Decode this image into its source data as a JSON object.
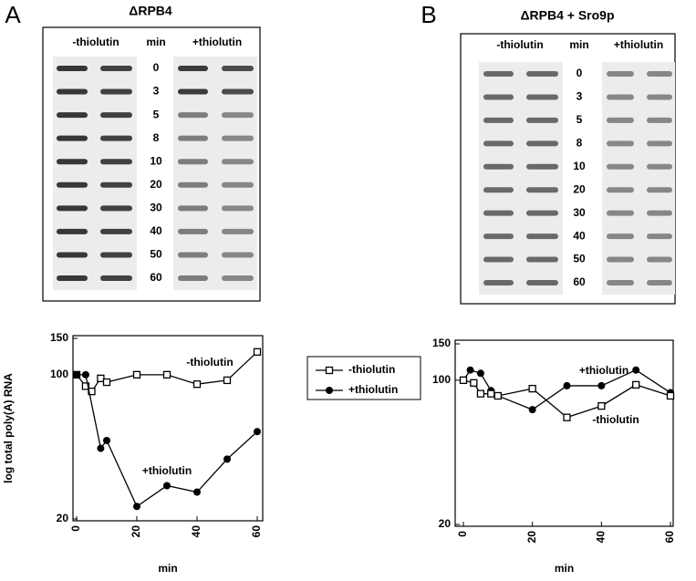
{
  "panels": [
    {
      "label": "A",
      "title": "ΔRPB4",
      "lanes": [
        "-thiolutin",
        "min",
        "+thiolutin"
      ],
      "times": [
        "0",
        "3",
        "5",
        "8",
        "10",
        "20",
        "30",
        "40",
        "50",
        "60"
      ]
    },
    {
      "label": "B",
      "title": "ΔRPB4 + Sro9p",
      "lanes": [
        "-thiolutin",
        "min",
        "+thiolutin"
      ],
      "times": [
        "0",
        "3",
        "5",
        "8",
        "10",
        "20",
        "30",
        "40",
        "50",
        "60"
      ]
    }
  ],
  "chart_data": [
    {
      "type": "line",
      "xlabel": "min",
      "ylabel": "log total poly(A) RNA",
      "log_y": true,
      "legend": true,
      "xlim": [
        0,
        60
      ],
      "xticks": [
        0,
        20,
        40,
        60
      ],
      "ylim": [
        20,
        150
      ],
      "yticks": [
        20,
        100,
        150
      ],
      "series": [
        {
          "name": "-thiolutin",
          "marker": "square",
          "color": "#000000",
          "x": [
            0,
            3,
            5,
            8,
            10,
            20,
            30,
            40,
            50,
            60
          ],
          "values": [
            100,
            88,
            83,
            96,
            92,
            100,
            100,
            90,
            94,
            129
          ]
        },
        {
          "name": "+thiolutin",
          "marker": "circle",
          "color": "#000000",
          "x": [
            0,
            3,
            8,
            10,
            20,
            30,
            40,
            50,
            60
          ],
          "values": [
            100,
            100,
            44,
            48,
            23,
            29,
            27,
            39,
            53
          ]
        }
      ]
    },
    {
      "type": "line",
      "xlabel": "min",
      "log_y": true,
      "legend": false,
      "xlim": [
        0,
        60
      ],
      "xticks": [
        0,
        20,
        40,
        60
      ],
      "ylim": [
        20,
        150
      ],
      "yticks": [
        20,
        100,
        150
      ],
      "series": [
        {
          "name": "+thiolutin",
          "marker": "circle",
          "color": "#000000",
          "x": [
            0,
            2,
            5,
            8,
            10,
            20,
            30,
            40,
            50,
            60
          ],
          "values": [
            100,
            112,
            108,
            89,
            84,
            72,
            94,
            94,
            112,
            87
          ]
        },
        {
          "name": "-thiolutin",
          "marker": "square",
          "color": "#000000",
          "x": [
            0,
            3,
            5,
            8,
            10,
            20,
            30,
            40,
            50,
            60
          ],
          "values": [
            100,
            97,
            86,
            86,
            84,
            91,
            66,
            75,
            95,
            84
          ]
        }
      ]
    }
  ]
}
